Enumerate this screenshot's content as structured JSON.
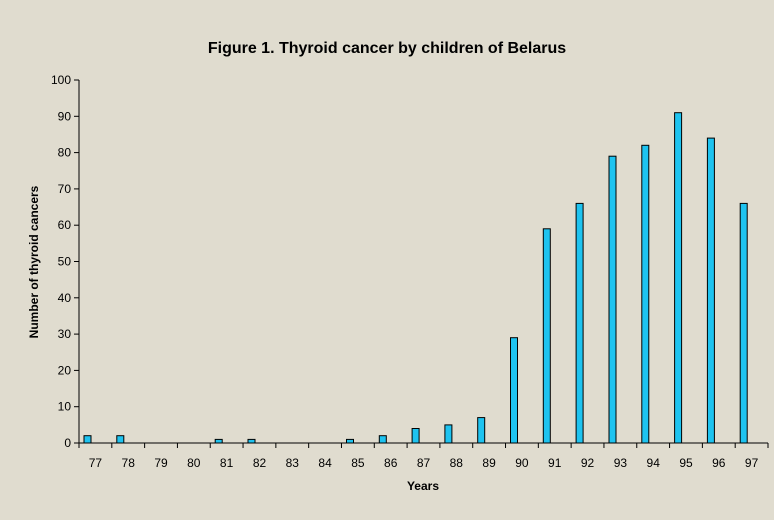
{
  "chart_data": {
    "type": "bar",
    "title": "Figure 1. Thyroid cancer by children of Belarus",
    "xlabel": "Years",
    "ylabel": "Number of thyroid cancers",
    "categories": [
      "77",
      "78",
      "79",
      "80",
      "81",
      "82",
      "83",
      "84",
      "85",
      "86",
      "87",
      "88",
      "89",
      "90",
      "91",
      "92",
      "93",
      "94",
      "95",
      "96",
      "97"
    ],
    "values": [
      2,
      2,
      0,
      0,
      1,
      1,
      0,
      0,
      1,
      2,
      4,
      5,
      7,
      29,
      59,
      66,
      79,
      82,
      91,
      84,
      66
    ],
    "ylim": [
      0,
      100
    ],
    "yticks": [
      0,
      10,
      20,
      30,
      40,
      50,
      60,
      70,
      80,
      90,
      100
    ],
    "grid": false,
    "legend": "none",
    "colors": {
      "bar_fill": "#1ec3f0",
      "bar_stroke": "#000000",
      "background": "#e0dccf"
    }
  }
}
